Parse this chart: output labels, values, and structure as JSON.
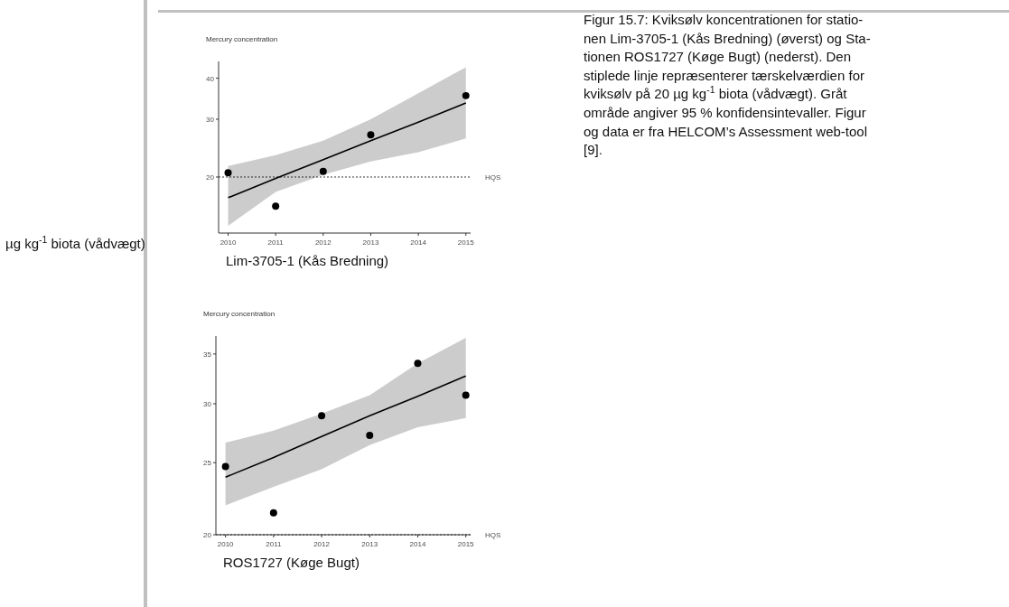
{
  "chart_data": [
    {
      "type": "scatter",
      "title": "Lim-3705-1 (Kås Bredning)",
      "ylabel": "Mercury concentration",
      "log": "y",
      "xlim": [
        2009.8,
        2015.1
      ],
      "xticks": [
        2010,
        2011,
        2012,
        2013,
        2014,
        2015
      ],
      "ylim": [
        13.5,
        45
      ],
      "yticks": [
        20,
        30,
        40
      ],
      "grid": false,
      "marker": "circle",
      "x": [
        2010,
        2011,
        2012,
        2013,
        2015
      ],
      "series": [
        {
          "type": "line",
          "marker": "none",
          "color": "#000000",
          "x": [
            2010,
            2011,
            2012,
            2013,
            2014,
            2015
          ],
          "values": [
            17.3,
            19.8,
            22.6,
            25.8,
            29.4,
            33.6
          ],
          "lower": [
            14.2,
            18.0,
            20.3,
            22.3,
            23.8,
            26.2
          ],
          "upper": [
            21.6,
            23.3,
            25.8,
            30.0,
            36.0,
            43.2
          ]
        },
        {
          "color": "#000000",
          "values": [
            20.6,
            16.3,
            20.8,
            26.9,
            35.4
          ]
        }
      ],
      "ref_lines": [
        {
          "axis": "y",
          "value": 20,
          "label": "HQS",
          "color": "#333333",
          "line_style": "dotted"
        }
      ],
      "annotations": [
        "µg kg$^{-1}$ biota (vådvægt)",
        "Figur 15.7: Kviksølv koncentrationen for statio-\nnen Lim-3705-1 (Kås Bredning) (øverst) og Sta-\ntionen ROS1727 (Køge Bugt) (nederst). Den\nstiplede linje repræsenterer tærskelværdien for\nkviksølv på 20 µg kg$^{-1}$ biota (vådvægt). Gråt\nområde angiver 95 % konfidensintevaller. Figur\nog data er fra HELCOM’s Assessment web-tool\n[9]."
      ]
    },
    {
      "type": "scatter",
      "title": "ROS1727 (Køge Bugt)",
      "ylabel": "Mercury concentration",
      "log": "y",
      "xlim": [
        2009.8,
        2015.1
      ],
      "xticks": [
        2010,
        2011,
        2012,
        2013,
        2014,
        2015
      ],
      "ylim": [
        20,
        37
      ],
      "yticks": [
        20,
        25,
        30,
        35
      ],
      "grid": false,
      "marker": "circle",
      "x": [
        2010,
        2011,
        2012,
        2013,
        2014,
        2015
      ],
      "series": [
        {
          "type": "line",
          "marker": "none",
          "color": "#000000",
          "x": [
            2010,
            2011,
            2012,
            2013,
            2014,
            2015
          ],
          "values": [
            23.9,
            25.4,
            27.1,
            28.9,
            30.7,
            32.7
          ],
          "lower": [
            21.9,
            23.2,
            24.5,
            26.4,
            27.9,
            28.7
          ],
          "upper": [
            26.6,
            27.6,
            29.1,
            30.8,
            34.0,
            36.8
          ]
        },
        {
          "color": "#000000",
          "values": [
            24.7,
            21.4,
            28.9,
            27.2,
            34.0,
            30.8
          ]
        }
      ],
      "ref_lines": [
        {
          "axis": "y",
          "value": 20,
          "label": "HQS",
          "color": "#333333",
          "line_style": "dotted"
        }
      ]
    }
  ]
}
